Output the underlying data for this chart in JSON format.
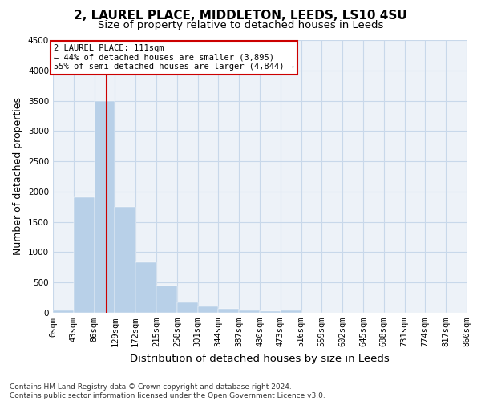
{
  "title": "2, LAUREL PLACE, MIDDLETON, LEEDS, LS10 4SU",
  "subtitle": "Size of property relative to detached houses in Leeds",
  "xlabel": "Distribution of detached houses by size in Leeds",
  "ylabel": "Number of detached properties",
  "bar_color": "#b8d0e8",
  "bar_edge_color": "#b8d0e8",
  "grid_color": "#c8d8ea",
  "background_color": "#edf2f8",
  "vline_color": "#cc0000",
  "vline_x": 111,
  "annotation_line1": "2 LAUREL PLACE: 111sqm",
  "annotation_line2": "← 44% of detached houses are smaller (3,895)",
  "annotation_line3": "55% of semi-detached houses are larger (4,844) →",
  "bin_edges": [
    0,
    43,
    86,
    129,
    172,
    215,
    258,
    301,
    344,
    387,
    430,
    473,
    516,
    559,
    602,
    645,
    688,
    731,
    774,
    817,
    860
  ],
  "bar_heights": [
    40,
    1900,
    3500,
    1750,
    830,
    450,
    170,
    100,
    60,
    35,
    25,
    40,
    5,
    5,
    3,
    3,
    2,
    2,
    2,
    2
  ],
  "ylim": [
    0,
    4500
  ],
  "yticks": [
    0,
    500,
    1000,
    1500,
    2000,
    2500,
    3000,
    3500,
    4000,
    4500
  ],
  "footer_text": "Contains HM Land Registry data © Crown copyright and database right 2024.\nContains public sector information licensed under the Open Government Licence v3.0.",
  "title_fontsize": 11,
  "subtitle_fontsize": 9.5,
  "axis_label_fontsize": 9,
  "tick_fontsize": 7.5,
  "footer_fontsize": 6.5
}
